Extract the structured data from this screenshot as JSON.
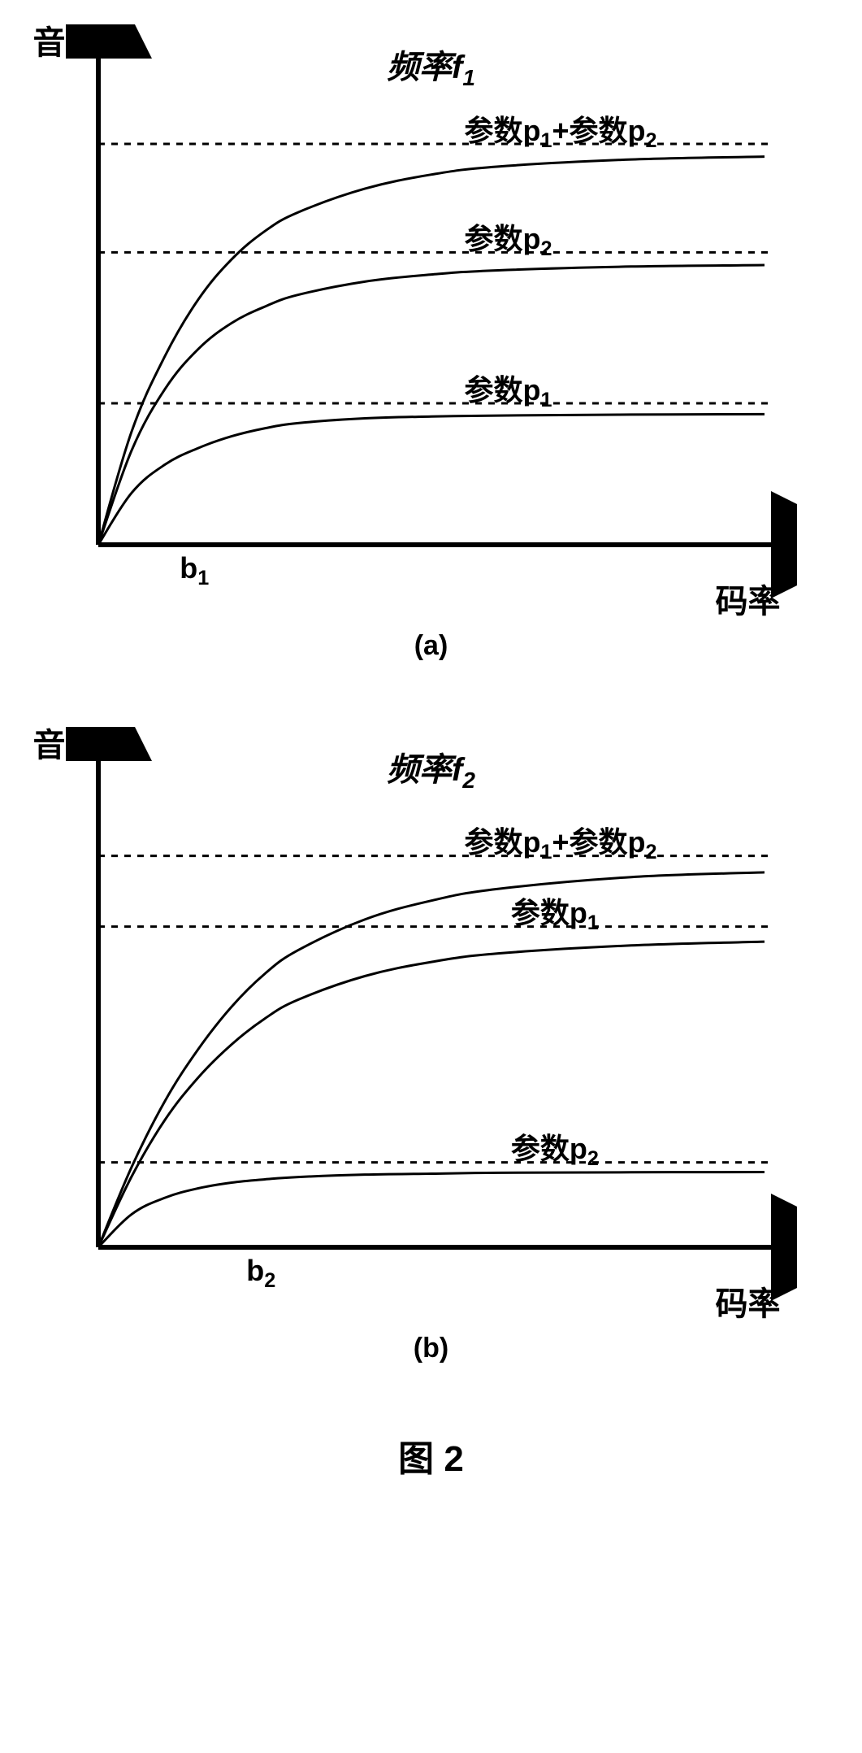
{
  "figure": {
    "caption": "图 2",
    "caption_fontsize": 44,
    "background_color": "#ffffff",
    "axis_color": "#000000",
    "curve_color": "#000000",
    "dashed_color": "#000000",
    "curve_stroke_width": 3,
    "axis_stroke_width": 6,
    "dashed_stroke_width": 3,
    "dash_pattern": "8 8",
    "arrow_size": 22,
    "label_fontsize": 40,
    "series_label_fontsize": 36,
    "tick_fontsize": 36,
    "subfig_fontsize": 34,
    "charts": [
      {
        "id": "a",
        "type": "line",
        "subfig_label": "(a)",
        "title_prefix": "频率f",
        "title_sub": "1",
        "y_label": "音质",
        "x_label": "码率",
        "xlim": [
          0,
          100
        ],
        "ylim": [
          0,
          100
        ],
        "x_tick": {
          "pos": 14,
          "label_main": "b",
          "label_sub": "1"
        },
        "series": [
          {
            "label_main": "参数p",
            "label_sub": "1",
            "label_full": "参数p₁",
            "asymptote_y": 30,
            "label_x": 55,
            "label_y": 34,
            "points": [
              [
                0,
                0
              ],
              [
                5,
                11
              ],
              [
                10,
                17
              ],
              [
                15,
                20.5
              ],
              [
                20,
                23
              ],
              [
                25,
                24.7
              ],
              [
                30,
                25.8
              ],
              [
                40,
                26.8
              ],
              [
                50,
                27.2
              ],
              [
                60,
                27.4
              ],
              [
                80,
                27.6
              ],
              [
                100,
                27.7
              ]
            ]
          },
          {
            "label_main": "参数p",
            "label_sub": "2",
            "label_full": "参数p₂",
            "asymptote_y": 62,
            "label_x": 55,
            "label_y": 66,
            "points": [
              [
                0,
                0
              ],
              [
                5,
                20
              ],
              [
                10,
                33
              ],
              [
                15,
                41.5
              ],
              [
                20,
                47
              ],
              [
                25,
                50.5
              ],
              [
                30,
                53
              ],
              [
                40,
                55.8
              ],
              [
                50,
                57.3
              ],
              [
                60,
                58.2
              ],
              [
                80,
                59
              ],
              [
                100,
                59.3
              ]
            ]
          },
          {
            "label_main": "参数p",
            "label_sub": "1",
            "label_extra_main": "+参数p",
            "label_extra_sub": "2",
            "label_full": "参数p₁+参数p₂",
            "asymptote_y": 85,
            "label_x": 55,
            "label_y": 89,
            "points": [
              [
                0,
                0
              ],
              [
                5,
                24
              ],
              [
                10,
                40
              ],
              [
                15,
                52
              ],
              [
                20,
                60.5
              ],
              [
                25,
                66.5
              ],
              [
                30,
                70.5
              ],
              [
                40,
                75.5
              ],
              [
                50,
                78.5
              ],
              [
                60,
                80.2
              ],
              [
                80,
                81.7
              ],
              [
                100,
                82.3
              ]
            ]
          }
        ]
      },
      {
        "id": "b",
        "type": "line",
        "subfig_label": "(b)",
        "title_prefix": "频率f",
        "title_sub": "2",
        "y_label": "音质",
        "x_label": "码率",
        "xlim": [
          0,
          100
        ],
        "ylim": [
          0,
          100
        ],
        "x_tick": {
          "pos": 24,
          "label_main": "b",
          "label_sub": "2"
        },
        "series": [
          {
            "label_main": "参数p",
            "label_sub": "2",
            "label_full": "参数p₂",
            "asymptote_y": 18,
            "label_x": 62,
            "label_y": 22,
            "points": [
              [
                0,
                0
              ],
              [
                5,
                7
              ],
              [
                10,
                10.5
              ],
              [
                15,
                12.5
              ],
              [
                20,
                13.7
              ],
              [
                25,
                14.4
              ],
              [
                30,
                14.9
              ],
              [
                40,
                15.4
              ],
              [
                50,
                15.6
              ],
              [
                60,
                15.8
              ],
              [
                80,
                15.9
              ],
              [
                100,
                15.95
              ]
            ]
          },
          {
            "label_main": "参数p",
            "label_sub": "1",
            "label_full": "参数p₁",
            "asymptote_y": 68,
            "label_x": 62,
            "label_y": 72,
            "points": [
              [
                0,
                0
              ],
              [
                5,
                15
              ],
              [
                10,
                27
              ],
              [
                15,
                36
              ],
              [
                20,
                43
              ],
              [
                25,
                48.5
              ],
              [
                30,
                52.5
              ],
              [
                40,
                57.5
              ],
              [
                50,
                60.5
              ],
              [
                60,
                62.3
              ],
              [
                80,
                64
              ],
              [
                100,
                64.8
              ]
            ]
          },
          {
            "label_main": "参数p",
            "label_sub": "1",
            "label_extra_main": "+参数p",
            "label_extra_sub": "2",
            "label_full": "参数p₁+参数p₂",
            "asymptote_y": 83,
            "label_x": 55,
            "label_y": 87,
            "points": [
              [
                0,
                0
              ],
              [
                5,
                17
              ],
              [
                10,
                31
              ],
              [
                15,
                42
              ],
              [
                20,
                51
              ],
              [
                25,
                58
              ],
              [
                30,
                63
              ],
              [
                40,
                69.5
              ],
              [
                50,
                73.5
              ],
              [
                60,
                76
              ],
              [
                80,
                78.5
              ],
              [
                100,
                79.5
              ]
            ]
          }
        ]
      }
    ]
  }
}
